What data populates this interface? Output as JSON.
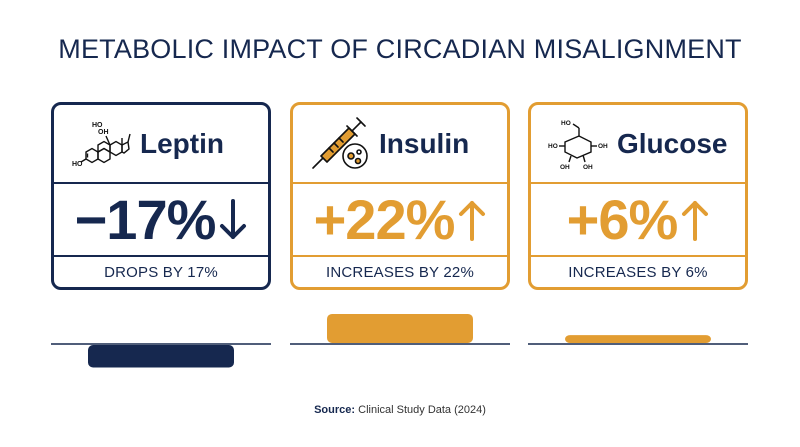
{
  "title": "METABOLIC IMPACT OF CIRCADIAN MISALIGNMENT",
  "colors": {
    "navy": "#16284f",
    "amber": "#e29d32"
  },
  "cards": [
    {
      "name": "Leptin",
      "value": "−17%",
      "direction": "down",
      "caption": "DROPS BY 17%",
      "icon": "steroid-molecule-icon",
      "color": "#16284f"
    },
    {
      "name": "Insulin",
      "value": "+22%",
      "direction": "up",
      "caption": "INCREASES BY 22%",
      "icon": "syringe-icon",
      "color": "#e29d32"
    },
    {
      "name": "Glucose",
      "value": "+6%",
      "direction": "up",
      "caption": "INCREASES BY 6%",
      "icon": "glucose-molecule-icon",
      "color": "#e29d32"
    }
  ],
  "molecule_labels": {
    "leptin": [
      "HO",
      "OH",
      "HO"
    ],
    "glucose": [
      "HO",
      "OH",
      "HO",
      "OH",
      "OH"
    ]
  },
  "chart_data": {
    "type": "bar",
    "categories": [
      "Leptin",
      "Insulin",
      "Glucose"
    ],
    "values": [
      -17,
      22,
      6
    ],
    "ylim": [
      -25,
      25
    ],
    "grid": false
  },
  "source": {
    "label": "Source:",
    "text": " Clinical Study Data (2024)"
  }
}
